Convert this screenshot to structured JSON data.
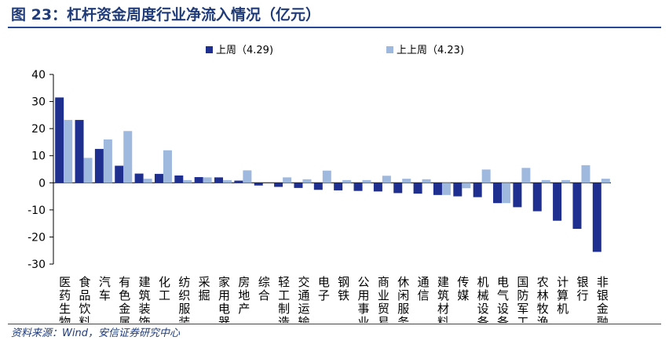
{
  "figure": {
    "title": "图 23：杠杆资金周度行业净流入情况（亿元）",
    "source": "资料来源：Wind，安信证券研究中心"
  },
  "chart_data": {
    "type": "bar",
    "title": "",
    "xlabel": "",
    "ylabel": "",
    "ylim": [
      -30,
      40
    ],
    "yticks": [
      40,
      30,
      20,
      10,
      0,
      -10,
      -20,
      -30
    ],
    "grid": false,
    "legend_position": "top",
    "categories": [
      "医药生物",
      "食品饮料",
      "汽车",
      "有色金属",
      "建筑装饰",
      "化工",
      "纺织服装",
      "采掘",
      "家用电器",
      "房地产",
      "综合",
      "轻工制造",
      "交通运输",
      "电子",
      "钢铁",
      "公用事业",
      "商业贸易",
      "休闲服务",
      "通信",
      "建筑材料",
      "传媒",
      "机械设备",
      "电气设备",
      "国防军工",
      "农林牧渔",
      "计算机",
      "银行",
      "非银金融"
    ],
    "series": [
      {
        "name": "上周（4.29)",
        "color": "#1f2f8f",
        "values": [
          31.5,
          23.2,
          12.5,
          6.3,
          3.4,
          3.3,
          2.7,
          2.1,
          2.0,
          0.8,
          -1.0,
          -1.5,
          -1.9,
          -2.6,
          -2.8,
          -3.0,
          -3.2,
          -3.8,
          -4.0,
          -4.5,
          -5.0,
          -5.3,
          -7.5,
          -9.0,
          -10.5,
          -14.0,
          -17.0,
          -25.5
        ]
      },
      {
        "name": "上上周（4.23)",
        "color": "#9fb8de",
        "values": [
          23.2,
          9.2,
          16.0,
          19.1,
          1.5,
          12.0,
          1.0,
          2.0,
          1.0,
          4.6,
          0.0,
          2.0,
          1.3,
          4.5,
          1.0,
          1.0,
          2.6,
          1.5,
          1.3,
          -4.5,
          -2.0,
          4.9,
          -7.5,
          5.5,
          1.0,
          1.0,
          6.5,
          1.5
        ]
      }
    ]
  }
}
